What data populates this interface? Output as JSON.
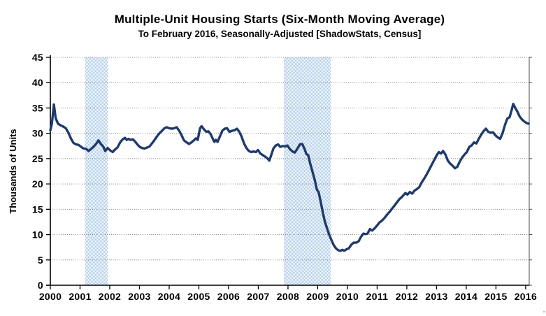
{
  "chart_data": {
    "type": "line",
    "title": "Multiple-Unit Housing Starts (Six-Month Moving Average)",
    "subtitle": "To February 2016, Seasonally-Adjusted [ShadowStats, Census]",
    "ylabel": "Thousands of Units",
    "ylim": [
      0,
      45
    ],
    "ytick_step": 5,
    "yticks": [
      0,
      5,
      10,
      15,
      20,
      25,
      30,
      35,
      40,
      45
    ],
    "xlim": [
      2000,
      2016.12
    ],
    "xticks": [
      2000,
      2001,
      2002,
      2003,
      2004,
      2005,
      2006,
      2007,
      2008,
      2009,
      2010,
      2011,
      2012,
      2013,
      2014,
      2015,
      2016
    ],
    "grid": "horizontal-dotted",
    "legend": "none",
    "colors": {
      "line": "#1e3a6d",
      "band": "#a9c9e7",
      "grid": "#8c8c8c",
      "axis": "#000000",
      "right_border": "#4d4d4d"
    },
    "recession_bands": [
      {
        "start": 2001.17,
        "end": 2001.93
      },
      {
        "start": 2007.86,
        "end": 2009.44
      }
    ],
    "series": [
      {
        "name": "Multiple-unit housing starts, six-month moving average",
        "points": [
          [
            2000.0,
            30.6
          ],
          [
            2000.05,
            31.8
          ],
          [
            2000.12,
            35.7
          ],
          [
            2000.18,
            33.0
          ],
          [
            2000.26,
            31.9
          ],
          [
            2000.34,
            31.6
          ],
          [
            2000.44,
            31.3
          ],
          [
            2000.52,
            31.0
          ],
          [
            2000.6,
            30.2
          ],
          [
            2000.7,
            28.9
          ],
          [
            2000.78,
            28.1
          ],
          [
            2000.87,
            27.8
          ],
          [
            2000.95,
            27.7
          ],
          [
            2001.04,
            27.3
          ],
          [
            2001.12,
            27.0
          ],
          [
            2001.21,
            26.9
          ],
          [
            2001.29,
            26.5
          ],
          [
            2001.37,
            26.9
          ],
          [
            2001.45,
            27.3
          ],
          [
            2001.54,
            27.9
          ],
          [
            2001.62,
            28.6
          ],
          [
            2001.7,
            27.9
          ],
          [
            2001.78,
            27.4
          ],
          [
            2001.85,
            26.5
          ],
          [
            2001.93,
            27.1
          ],
          [
            2002.02,
            26.6
          ],
          [
            2002.1,
            26.3
          ],
          [
            2002.18,
            26.8
          ],
          [
            2002.26,
            27.2
          ],
          [
            2002.35,
            28.2
          ],
          [
            2002.43,
            28.8
          ],
          [
            2002.51,
            29.1
          ],
          [
            2002.57,
            28.7
          ],
          [
            2002.63,
            28.9
          ],
          [
            2002.7,
            28.7
          ],
          [
            2002.78,
            28.8
          ],
          [
            2002.85,
            28.4
          ],
          [
            2002.93,
            27.8
          ],
          [
            2003.01,
            27.3
          ],
          [
            2003.09,
            27.1
          ],
          [
            2003.17,
            27.0
          ],
          [
            2003.26,
            27.2
          ],
          [
            2003.34,
            27.4
          ],
          [
            2003.42,
            28.0
          ],
          [
            2003.5,
            28.6
          ],
          [
            2003.59,
            29.4
          ],
          [
            2003.67,
            30.0
          ],
          [
            2003.76,
            30.5
          ],
          [
            2003.84,
            31.0
          ],
          [
            2003.92,
            31.2
          ],
          [
            2004.0,
            31.0
          ],
          [
            2004.09,
            30.9
          ],
          [
            2004.17,
            31.0
          ],
          [
            2004.25,
            31.2
          ],
          [
            2004.34,
            30.5
          ],
          [
            2004.42,
            29.6
          ],
          [
            2004.5,
            28.6
          ],
          [
            2004.59,
            28.2
          ],
          [
            2004.67,
            27.9
          ],
          [
            2004.75,
            28.2
          ],
          [
            2004.83,
            28.6
          ],
          [
            2004.9,
            29.0
          ],
          [
            2004.96,
            28.7
          ],
          [
            2005.04,
            31.0
          ],
          [
            2005.09,
            31.4
          ],
          [
            2005.17,
            30.8
          ],
          [
            2005.25,
            30.3
          ],
          [
            2005.32,
            30.4
          ],
          [
            2005.4,
            29.8
          ],
          [
            2005.47,
            28.9
          ],
          [
            2005.52,
            28.3
          ],
          [
            2005.57,
            28.7
          ],
          [
            2005.63,
            28.3
          ],
          [
            2005.71,
            29.4
          ],
          [
            2005.79,
            30.5
          ],
          [
            2005.87,
            30.9
          ],
          [
            2005.95,
            31.0
          ],
          [
            2006.03,
            30.3
          ],
          [
            2006.12,
            30.5
          ],
          [
            2006.2,
            30.6
          ],
          [
            2006.28,
            30.9
          ],
          [
            2006.36,
            30.3
          ],
          [
            2006.44,
            29.3
          ],
          [
            2006.52,
            28.0
          ],
          [
            2006.6,
            27.1
          ],
          [
            2006.68,
            26.5
          ],
          [
            2006.76,
            26.3
          ],
          [
            2006.84,
            26.4
          ],
          [
            2006.92,
            26.3
          ],
          [
            2006.99,
            26.7
          ],
          [
            2007.07,
            26.0
          ],
          [
            2007.15,
            25.7
          ],
          [
            2007.23,
            25.4
          ],
          [
            2007.3,
            25.1
          ],
          [
            2007.37,
            24.6
          ],
          [
            2007.44,
            25.8
          ],
          [
            2007.51,
            27.0
          ],
          [
            2007.59,
            27.6
          ],
          [
            2007.67,
            27.8
          ],
          [
            2007.74,
            27.3
          ],
          [
            2007.82,
            27.5
          ],
          [
            2007.9,
            27.4
          ],
          [
            2007.98,
            27.6
          ],
          [
            2008.06,
            26.9
          ],
          [
            2008.15,
            26.4
          ],
          [
            2008.23,
            26.2
          ],
          [
            2008.31,
            26.9
          ],
          [
            2008.4,
            27.8
          ],
          [
            2008.48,
            27.9
          ],
          [
            2008.56,
            26.9
          ],
          [
            2008.62,
            25.9
          ],
          [
            2008.68,
            25.7
          ],
          [
            2008.74,
            24.2
          ],
          [
            2008.82,
            22.5
          ],
          [
            2008.9,
            20.8
          ],
          [
            2008.97,
            18.9
          ],
          [
            2009.03,
            18.4
          ],
          [
            2009.1,
            16.5
          ],
          [
            2009.17,
            14.4
          ],
          [
            2009.24,
            12.6
          ],
          [
            2009.31,
            11.3
          ],
          [
            2009.38,
            10.1
          ],
          [
            2009.45,
            9.1
          ],
          [
            2009.53,
            8.0
          ],
          [
            2009.61,
            7.3
          ],
          [
            2009.69,
            6.9
          ],
          [
            2009.77,
            6.8
          ],
          [
            2009.83,
            7.0
          ],
          [
            2009.89,
            6.8
          ],
          [
            2009.97,
            7.1
          ],
          [
            2010.05,
            7.3
          ],
          [
            2010.13,
            8.0
          ],
          [
            2010.21,
            8.4
          ],
          [
            2010.3,
            8.4
          ],
          [
            2010.38,
            8.7
          ],
          [
            2010.46,
            9.6
          ],
          [
            2010.54,
            10.2
          ],
          [
            2010.6,
            10.1
          ],
          [
            2010.68,
            10.2
          ],
          [
            2010.76,
            11.1
          ],
          [
            2010.83,
            10.8
          ],
          [
            2010.91,
            11.2
          ],
          [
            2011.0,
            11.8
          ],
          [
            2011.08,
            12.4
          ],
          [
            2011.17,
            12.8
          ],
          [
            2011.25,
            13.3
          ],
          [
            2011.33,
            13.9
          ],
          [
            2011.42,
            14.5
          ],
          [
            2011.5,
            15.1
          ],
          [
            2011.58,
            15.7
          ],
          [
            2011.67,
            16.4
          ],
          [
            2011.75,
            17.0
          ],
          [
            2011.83,
            17.4
          ],
          [
            2011.89,
            17.8
          ],
          [
            2011.95,
            18.2
          ],
          [
            2012.02,
            17.9
          ],
          [
            2012.1,
            18.4
          ],
          [
            2012.18,
            18.1
          ],
          [
            2012.26,
            18.7
          ],
          [
            2012.34,
            19.0
          ],
          [
            2012.42,
            19.4
          ],
          [
            2012.5,
            20.3
          ],
          [
            2012.59,
            21.1
          ],
          [
            2012.67,
            21.9
          ],
          [
            2012.75,
            22.8
          ],
          [
            2012.83,
            23.7
          ],
          [
            2012.92,
            24.7
          ],
          [
            2013.0,
            25.6
          ],
          [
            2013.08,
            26.3
          ],
          [
            2013.15,
            26.0
          ],
          [
            2013.22,
            26.5
          ],
          [
            2013.3,
            25.8
          ],
          [
            2013.38,
            24.6
          ],
          [
            2013.46,
            24.0
          ],
          [
            2013.54,
            23.6
          ],
          [
            2013.62,
            23.1
          ],
          [
            2013.7,
            23.4
          ],
          [
            2013.78,
            24.4
          ],
          [
            2013.86,
            25.2
          ],
          [
            2013.94,
            25.8
          ],
          [
            2014.02,
            26.3
          ],
          [
            2014.1,
            27.3
          ],
          [
            2014.18,
            27.6
          ],
          [
            2014.26,
            28.2
          ],
          [
            2014.34,
            28.0
          ],
          [
            2014.42,
            28.9
          ],
          [
            2014.5,
            29.7
          ],
          [
            2014.58,
            30.4
          ],
          [
            2014.66,
            30.9
          ],
          [
            2014.74,
            30.3
          ],
          [
            2014.82,
            30.1
          ],
          [
            2014.9,
            30.2
          ],
          [
            2014.98,
            29.6
          ],
          [
            2015.06,
            29.2
          ],
          [
            2015.14,
            28.9
          ],
          [
            2015.22,
            30.0
          ],
          [
            2015.3,
            31.6
          ],
          [
            2015.38,
            32.9
          ],
          [
            2015.46,
            33.2
          ],
          [
            2015.53,
            34.6
          ],
          [
            2015.58,
            35.8
          ],
          [
            2015.66,
            34.9
          ],
          [
            2015.72,
            34.3
          ],
          [
            2015.8,
            33.3
          ],
          [
            2015.88,
            32.7
          ],
          [
            2015.96,
            32.3
          ],
          [
            2016.04,
            32.0
          ],
          [
            2016.1,
            31.9
          ]
        ]
      }
    ]
  }
}
